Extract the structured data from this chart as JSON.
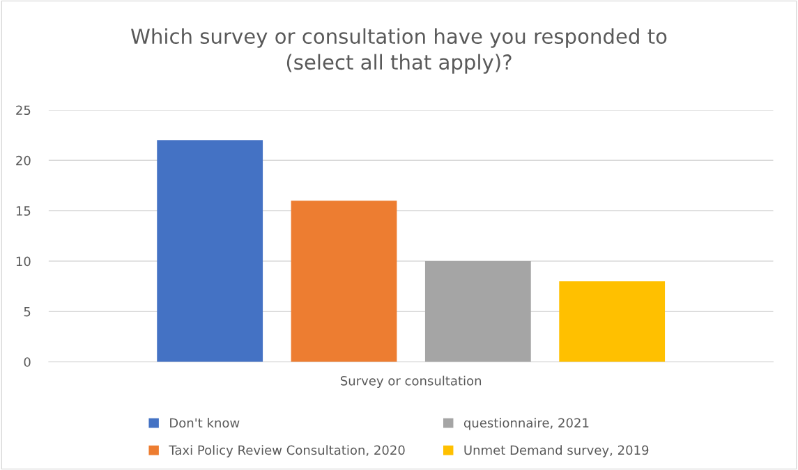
{
  "chart_data": {
    "type": "bar",
    "title": "Which survey or consultation have you responded to\n(select all that apply)?",
    "categories": [
      "Survey or consultation"
    ],
    "series": [
      {
        "name": "Don't know",
        "color": "#4472c4",
        "values": [
          22
        ]
      },
      {
        "name": "Taxi Policy Review Consultation, 2020",
        "color": "#ed7d31",
        "values": [
          16
        ]
      },
      {
        "name": "questionnaire, 2021",
        "color": "#a5a5a5",
        "values": [
          10
        ]
      },
      {
        "name": "Unmet Demand survey, 2019",
        "color": "#ffc000",
        "values": [
          8
        ]
      }
    ],
    "ylim": [
      0,
      25
    ],
    "yticks": [
      0,
      5,
      10,
      15,
      20,
      25
    ],
    "grid": "y",
    "legend": "bottom"
  }
}
